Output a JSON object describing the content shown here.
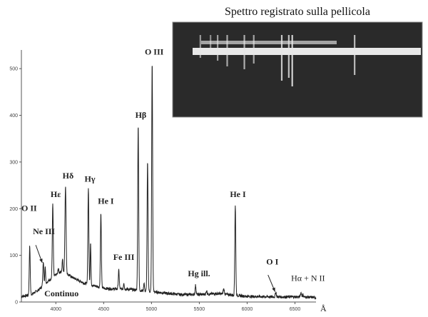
{
  "chart_data": {
    "type": "line",
    "title": "",
    "xlabel": "",
    "x_unit": "Å",
    "ylabel": "",
    "xlim": [
      3640,
      6720
    ],
    "ylim": [
      0,
      540
    ],
    "x_ticks": [
      4000,
      4500,
      5000,
      5500,
      6000,
      6500
    ],
    "y_ticks": [
      0,
      100,
      200,
      300,
      400,
      500
    ],
    "grid": false,
    "series": [
      {
        "baseline": [
          [
            3640,
            12
          ],
          [
            3700,
            14
          ],
          [
            3760,
            18
          ],
          [
            3820,
            26
          ],
          [
            3880,
            38
          ],
          [
            3940,
            48
          ],
          [
            4000,
            58
          ],
          [
            4060,
            66
          ],
          [
            4120,
            60
          ],
          [
            4180,
            52
          ],
          [
            4240,
            46
          ],
          [
            4300,
            40
          ],
          [
            4380,
            36
          ],
          [
            4450,
            32
          ],
          [
            4520,
            29
          ],
          [
            4600,
            28
          ],
          [
            4700,
            28
          ],
          [
            4780,
            27
          ],
          [
            4830,
            26
          ],
          [
            5100,
            20
          ],
          [
            5300,
            16
          ],
          [
            5500,
            16
          ],
          [
            5700,
            18
          ],
          [
            5800,
            16
          ],
          [
            6000,
            12
          ],
          [
            6300,
            11
          ],
          [
            6500,
            11
          ],
          [
            6700,
            10
          ]
        ],
        "lines": [
          {
            "x": 3727,
            "y": 120,
            "w": 5
          },
          {
            "x": 3869,
            "y": 88,
            "w": 5
          },
          {
            "x": 3889,
            "y": 78,
            "w": 4
          },
          {
            "x": 3968,
            "y": 210,
            "w": 5
          },
          {
            "x": 4026,
            "y": 72,
            "w": 4
          },
          {
            "x": 4070,
            "y": 92,
            "w": 4
          },
          {
            "x": 4101,
            "y": 248,
            "w": 6
          },
          {
            "x": 4340,
            "y": 245,
            "w": 5
          },
          {
            "x": 4363,
            "y": 128,
            "w": 4
          },
          {
            "x": 4471,
            "y": 190,
            "w": 5
          },
          {
            "x": 4658,
            "y": 68,
            "w": 5
          },
          {
            "x": 4711,
            "y": 42,
            "w": 4
          },
          {
            "x": 4861,
            "y": 380,
            "w": 5
          },
          {
            "x": 4922,
            "y": 42,
            "w": 4
          },
          {
            "x": 4959,
            "y": 300,
            "w": 5
          },
          {
            "x": 5007,
            "y": 515,
            "w": 5
          },
          {
            "x": 5461,
            "y": 36,
            "w": 5
          },
          {
            "x": 5577,
            "y": 24,
            "w": 5
          },
          {
            "x": 5755,
            "y": 28,
            "w": 6
          },
          {
            "x": 5876,
            "y": 208,
            "w": 5
          },
          {
            "x": 6300,
            "y": 22,
            "w": 5
          },
          {
            "x": 6563,
            "y": 20,
            "w": 6
          },
          {
            "x": 6584,
            "y": 16,
            "w": 5
          }
        ]
      }
    ],
    "annotations": [
      {
        "text": "O II",
        "x": 3640,
        "y": 195,
        "bold": true
      },
      {
        "text": "Ne III",
        "x": 3760,
        "y": 145,
        "bold": true
      },
      {
        "text": "Hε",
        "x": 3945,
        "y": 225,
        "bold": true
      },
      {
        "text": "Hδ",
        "x": 4070,
        "y": 265,
        "bold": true
      },
      {
        "text": "Hγ",
        "x": 4300,
        "y": 258,
        "bold": true
      },
      {
        "text": "He I",
        "x": 4440,
        "y": 210,
        "bold": true
      },
      {
        "text": "Fe III",
        "x": 4600,
        "y": 90,
        "bold": true
      },
      {
        "text": "Hβ",
        "x": 4830,
        "y": 395,
        "bold": true
      },
      {
        "text": "O III",
        "x": 4930,
        "y": 530,
        "bold": true
      },
      {
        "text": "Hg ill.",
        "x": 5380,
        "y": 55,
        "bold": true
      },
      {
        "text": "He I",
        "x": 5820,
        "y": 225,
        "bold": true
      },
      {
        "text": "O I",
        "x": 6200,
        "y": 80,
        "bold": true
      },
      {
        "text": "Hα + N II",
        "x": 6460,
        "y": 45,
        "bold": false
      },
      {
        "text": "Continuo",
        "x": 3880,
        "y": 12,
        "bold": true
      }
    ],
    "arrows": [
      {
        "from": [
          3790,
          122
        ],
        "to": [
          3858,
          84
        ]
      },
      {
        "from": [
          6218,
          58
        ],
        "to": [
          6292,
          22
        ]
      }
    ],
    "inset": {
      "title": "Spettro registrato sulla pellicola",
      "lines": [
        {
          "x": 3727,
          "intensity": 0.4
        },
        {
          "x": 3869,
          "intensity": 0.3
        },
        {
          "x": 3968,
          "intensity": 0.45
        },
        {
          "x": 4101,
          "intensity": 0.55
        },
        {
          "x": 4340,
          "intensity": 0.6
        },
        {
          "x": 4471,
          "intensity": 0.5
        },
        {
          "x": 4861,
          "intensity": 0.8
        },
        {
          "x": 4959,
          "intensity": 0.75
        },
        {
          "x": 5007,
          "intensity": 0.9
        },
        {
          "x": 5876,
          "intensity": 0.7
        }
      ]
    }
  }
}
